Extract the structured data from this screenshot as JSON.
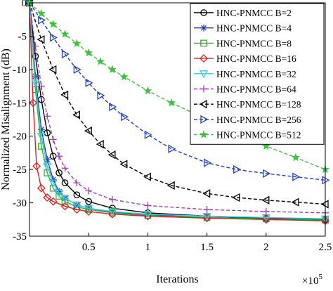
{
  "chart_data": {
    "type": "line",
    "title": "",
    "xlabel": "Iterations",
    "ylabel": "Normalized Misalignment (dB)",
    "x_exponent_label": "×10",
    "x_exponent_power": "5",
    "xlim": [
      0,
      2.5
    ],
    "ylim": [
      -35,
      0
    ],
    "x_ticks": [
      {
        "value": 0.5,
        "label": "0.5"
      },
      {
        "value": 1,
        "label": "1"
      },
      {
        "value": 1.5,
        "label": "1.5"
      },
      {
        "value": 2,
        "label": "2"
      },
      {
        "value": 2.5,
        "label": "2.5"
      }
    ],
    "y_ticks": [
      {
        "value": 0,
        "label": "0"
      },
      {
        "value": -5,
        "label": "-5"
      },
      {
        "value": -10,
        "label": "-10"
      },
      {
        "value": -15,
        "label": "-15"
      },
      {
        "value": -20,
        "label": "-20"
      },
      {
        "value": -25,
        "label": "-25"
      },
      {
        "value": -30,
        "label": "-30"
      },
      {
        "value": -35,
        "label": "-35"
      }
    ],
    "grid": false,
    "legend_position": "top-right",
    "series": [
      {
        "name": "HNC-PNMCC B=2",
        "color": "#000000",
        "marker": "circle",
        "dash": "solid",
        "x": [
          0,
          0.05,
          0.1,
          0.15,
          0.2,
          0.25,
          0.3,
          0.4,
          0.5,
          0.7,
          1.0,
          1.5,
          2.0,
          2.5
        ],
        "y": [
          0,
          -8,
          -14.5,
          -19.5,
          -23,
          -25.5,
          -27,
          -28.8,
          -29.8,
          -30.8,
          -31.5,
          -32,
          -32.3,
          -32.5
        ]
      },
      {
        "name": "HNC-PNMCC B=4",
        "color": "#1f3fbf",
        "marker": "asterisk",
        "dash": "solid",
        "x": [
          0,
          0.05,
          0.1,
          0.15,
          0.2,
          0.25,
          0.3,
          0.4,
          0.5,
          0.7,
          1.0,
          1.5,
          2.0,
          2.5
        ],
        "y": [
          0,
          -11,
          -19,
          -23.5,
          -26.5,
          -28.3,
          -29.3,
          -30.3,
          -30.8,
          -31.4,
          -31.8,
          -32.2,
          -32.4,
          -32.6
        ]
      },
      {
        "name": "HNC-PNMCC B=8",
        "color": "#33b033",
        "marker": "square",
        "dash": "solid",
        "x": [
          0,
          0.05,
          0.1,
          0.15,
          0.2,
          0.25,
          0.3,
          0.4,
          0.5,
          0.7,
          1.0,
          1.5,
          2.0,
          2.5
        ],
        "y": [
          0,
          -13,
          -21.5,
          -25.5,
          -27.8,
          -29,
          -29.8,
          -30.6,
          -31,
          -31.5,
          -31.9,
          -32.2,
          -32.4,
          -32.6
        ]
      },
      {
        "name": "HNC-PNMCC B=16",
        "color": "#e02020",
        "marker": "diamond",
        "dash": "solid",
        "x": [
          0,
          0.03,
          0.06,
          0.1,
          0.15,
          0.2,
          0.3,
          0.4,
          0.5,
          0.7,
          1.0,
          1.5,
          2.0,
          2.5
        ],
        "y": [
          0,
          -15,
          -24.5,
          -27.8,
          -29.2,
          -29.8,
          -30.5,
          -31,
          -31.3,
          -31.7,
          -32,
          -32.3,
          -32.5,
          -32.7
        ]
      },
      {
        "name": "HNC-PNMCC B=32",
        "color": "#40c8d8",
        "marker": "triangle-down",
        "dash": "solid",
        "x": [
          0,
          0.05,
          0.1,
          0.15,
          0.2,
          0.25,
          0.3,
          0.4,
          0.5,
          0.7,
          1.0,
          1.5,
          2.0,
          2.5
        ],
        "y": [
          0,
          -12,
          -20,
          -24.5,
          -27,
          -28.5,
          -29.3,
          -30.3,
          -30.8,
          -31.3,
          -31.7,
          -32,
          -32.2,
          -32.4
        ]
      },
      {
        "name": "HNC-PNMCC B=64",
        "color": "#a040b0",
        "marker": "plus",
        "dash": "dashed",
        "x": [
          0,
          0.05,
          0.1,
          0.15,
          0.2,
          0.25,
          0.3,
          0.4,
          0.5,
          0.7,
          1.0,
          1.5,
          2.0,
          2.5
        ],
        "y": [
          0,
          -6.5,
          -12.5,
          -17,
          -20.5,
          -23,
          -24.8,
          -27,
          -28.2,
          -29.5,
          -30.4,
          -31,
          -31.3,
          -31.5
        ]
      },
      {
        "name": "HNC-PNMCC B=128",
        "color": "#000000",
        "marker": "triangle-left",
        "dash": "dashed",
        "x": [
          0,
          0.1,
          0.2,
          0.3,
          0.4,
          0.5,
          0.6,
          0.7,
          0.8,
          1.0,
          1.2,
          1.5,
          1.75,
          2.0,
          2.25,
          2.5
        ],
        "y": [
          0,
          -5.5,
          -10,
          -13.8,
          -16.8,
          -19.2,
          -21.2,
          -22.8,
          -24.2,
          -26.1,
          -27.4,
          -28.6,
          -29.2,
          -29.6,
          -29.9,
          -30.2
        ]
      },
      {
        "name": "HNC-PNMCC B=256",
        "color": "#2040c0",
        "marker": "triangle-right",
        "dash": "dashed",
        "x": [
          0,
          0.1,
          0.2,
          0.3,
          0.4,
          0.5,
          0.6,
          0.7,
          0.8,
          1.0,
          1.2,
          1.5,
          1.75,
          2.0,
          2.25,
          2.5
        ],
        "y": [
          0,
          -2.6,
          -5.2,
          -7.7,
          -10,
          -12,
          -13.9,
          -15.6,
          -17.1,
          -19.8,
          -21.9,
          -24,
          -25,
          -25.6,
          -26.1,
          -26.6
        ]
      },
      {
        "name": "HNC-PNMCC B=512",
        "color": "#40c040",
        "marker": "star",
        "dash": "dashed",
        "x": [
          0,
          0.1,
          0.2,
          0.3,
          0.4,
          0.5,
          0.6,
          0.7,
          0.8,
          1.0,
          1.2,
          1.5,
          1.75,
          2.0,
          2.25,
          2.5
        ],
        "y": [
          0,
          -1.6,
          -3.2,
          -4.7,
          -6.1,
          -7.5,
          -8.8,
          -10,
          -11.1,
          -13.2,
          -15,
          -17.5,
          -19.5,
          -21.5,
          -23.2,
          -25
        ]
      }
    ]
  }
}
